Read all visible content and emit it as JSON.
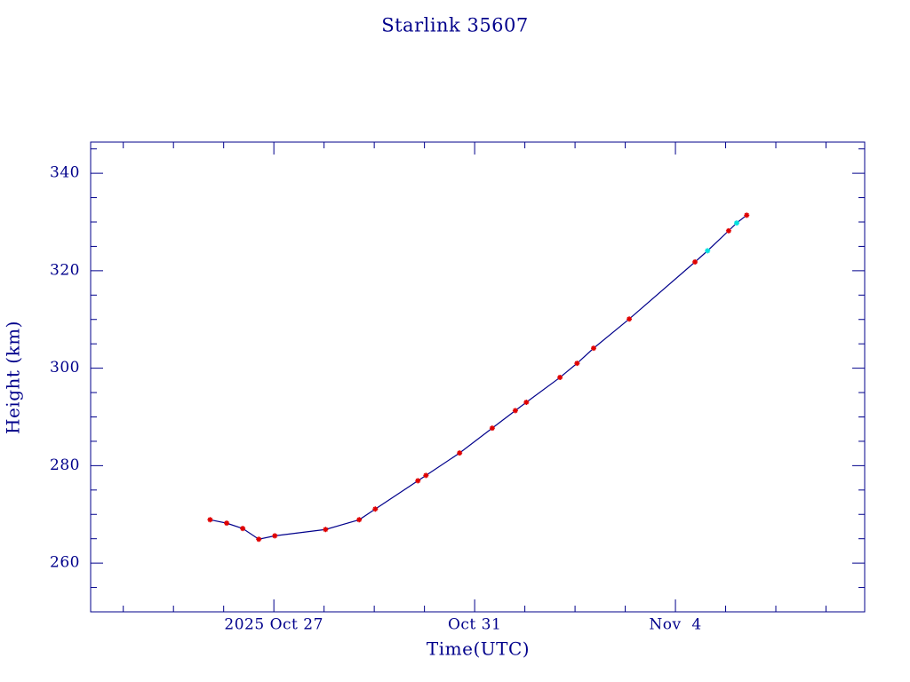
{
  "chart_data": {
    "type": "line",
    "title": "Starlink 35607",
    "x_label": "Time(UTC)",
    "y_label": "Height (km)",
    "x": [
      298.73,
      299.06,
      299.38,
      299.7,
      300.02,
      301.03,
      301.7,
      302.02,
      302.87,
      303.03,
      303.7,
      304.35,
      304.81,
      305.03,
      305.7,
      306.04,
      306.37,
      307.08,
      308.39,
      308.64,
      309.06,
      309.22,
      309.42
    ],
    "values": [
      268.9,
      268.2,
      267.1,
      264.9,
      265.6,
      266.9,
      268.9,
      271.1,
      276.9,
      278.0,
      282.6,
      287.7,
      291.3,
      293.0,
      298.1,
      301.0,
      304.1,
      310.1,
      321.8,
      324.1,
      328.2,
      329.8,
      331.4
    ],
    "color": "#00008b",
    "marker_colors": [
      "#e00000",
      "#e00000",
      "#e00000",
      "#e00000",
      "#e00000",
      "#e00000",
      "#e00000",
      "#e00000",
      "#e00000",
      "#e00000",
      "#e00000",
      "#e00000",
      "#e00000",
      "#e00000",
      "#e00000",
      "#e00000",
      "#e00000",
      "#e00000",
      "#e00000",
      "#00e0e0",
      "#e00000",
      "#00e0e0",
      "#e00000"
    ],
    "xlim": [
      296.35,
      311.77
    ],
    "xticks": [
      {
        "value": 300,
        "label": "2025 Oct 27"
      },
      {
        "value": 304,
        "label": "Oct 31"
      },
      {
        "value": 308,
        "label": "Nov  4"
      }
    ],
    "xminorticks": [
      297,
      298,
      299,
      301,
      302,
      303,
      305,
      306,
      307,
      309,
      310,
      311
    ],
    "ylim": [
      250,
      346.4
    ],
    "yticks": [
      260,
      280,
      300,
      320,
      340
    ],
    "yminorticks": [
      250,
      255,
      265,
      270,
      275,
      285,
      290,
      295,
      305,
      310,
      315,
      325,
      330,
      335,
      345
    ]
  }
}
